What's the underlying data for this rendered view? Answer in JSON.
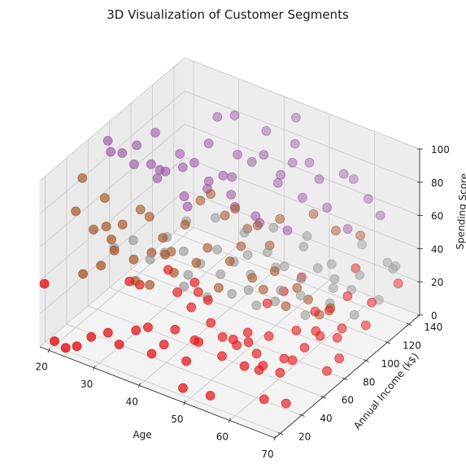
{
  "chart_data": {
    "type": "scatter",
    "projection": "3d",
    "title": "3D Visualization of Customer Segments",
    "xlabel": "Age",
    "ylabel": "Annual Income (k$)",
    "zlabel": "Spending Score",
    "xlim": [
      18,
      70
    ],
    "ylim": [
      15,
      150
    ],
    "zlim": [
      0,
      100
    ],
    "x_ticks": [
      20,
      30,
      40,
      50,
      60,
      70
    ],
    "y_ticks": [
      20,
      40,
      60,
      80,
      100,
      120,
      140
    ],
    "z_ticks": [
      0,
      20,
      40,
      60,
      80,
      100
    ],
    "grid": true,
    "legend": "none",
    "series": [
      {
        "color": "#e41a1c",
        "points": [
          [
            19,
            15,
            39
          ],
          [
            21,
            16,
            6
          ],
          [
            23,
            18,
            3
          ],
          [
            25,
            20,
            5
          ],
          [
            27,
            25,
            10
          ],
          [
            30,
            28,
            14
          ],
          [
            32,
            30,
            8
          ],
          [
            35,
            33,
            18
          ],
          [
            38,
            35,
            6
          ],
          [
            40,
            38,
            12
          ],
          [
            42,
            40,
            22
          ],
          [
            44,
            42,
            4
          ],
          [
            46,
            45,
            16
          ],
          [
            48,
            48,
            28
          ],
          [
            50,
            50,
            9
          ],
          [
            52,
            52,
            20
          ],
          [
            54,
            54,
            5
          ],
          [
            56,
            57,
            13
          ],
          [
            58,
            60,
            24
          ],
          [
            60,
            62,
            3
          ],
          [
            62,
            65,
            11
          ],
          [
            64,
            68,
            19
          ],
          [
            66,
            70,
            30
          ],
          [
            68,
            72,
            7
          ],
          [
            70,
            75,
            15
          ],
          [
            55,
            18,
            8
          ],
          [
            48,
            22,
            3
          ],
          [
            65,
            26,
            12
          ],
          [
            58,
            30,
            35
          ],
          [
            62,
            34,
            22
          ],
          [
            67,
            38,
            5
          ],
          [
            52,
            42,
            27
          ],
          [
            60,
            46,
            16
          ],
          [
            45,
            58,
            33
          ],
          [
            35,
            63,
            38
          ],
          [
            28,
            66,
            20
          ],
          [
            40,
            70,
            26
          ],
          [
            50,
            74,
            10
          ],
          [
            57,
            78,
            40
          ],
          [
            63,
            82,
            32
          ],
          [
            68,
            86,
            25
          ],
          [
            66,
            90,
            15
          ],
          [
            61,
            95,
            8
          ],
          [
            56,
            99,
            36
          ],
          [
            69,
            104,
            18
          ],
          [
            64,
            108,
            28
          ],
          [
            59,
            112,
            12
          ],
          [
            67,
            118,
            22
          ],
          [
            62,
            124,
            34
          ],
          [
            70,
            130,
            30
          ],
          [
            47,
            34,
            44
          ],
          [
            36,
            40,
            17
          ],
          [
            30,
            48,
            34
          ],
          [
            43,
            54,
            9
          ],
          [
            53,
            62,
            14
          ],
          [
            59,
            70,
            6
          ],
          [
            38,
            75,
            27
          ],
          [
            33,
            80,
            13
          ],
          [
            65,
            56,
            37
          ],
          [
            51,
            88,
            21
          ]
        ]
      },
      {
        "color": "#a65628",
        "points": [
          [
            20,
            40,
            70
          ],
          [
            21,
            42,
            90
          ],
          [
            23,
            44,
            60
          ],
          [
            25,
            46,
            80
          ],
          [
            26,
            48,
            55
          ],
          [
            28,
            50,
            65
          ],
          [
            30,
            52,
            45
          ],
          [
            31,
            54,
            75
          ],
          [
            33,
            56,
            50
          ],
          [
            35,
            58,
            60
          ],
          [
            37,
            60,
            40
          ],
          [
            39,
            62,
            70
          ],
          [
            41,
            64,
            48
          ],
          [
            43,
            66,
            58
          ],
          [
            45,
            68,
            35
          ],
          [
            47,
            70,
            52
          ],
          [
            49,
            72,
            62
          ],
          [
            51,
            74,
            44
          ],
          [
            53,
            76,
            38
          ],
          [
            55,
            78,
            50
          ],
          [
            57,
            80,
            30
          ],
          [
            59,
            82,
            42
          ],
          [
            61,
            84,
            36
          ],
          [
            63,
            86,
            28
          ],
          [
            65,
            88,
            33
          ],
          [
            22,
            60,
            52
          ],
          [
            24,
            30,
            42
          ],
          [
            27,
            34,
            48
          ],
          [
            29,
            38,
            57
          ],
          [
            32,
            45,
            38
          ],
          [
            34,
            50,
            35
          ],
          [
            36,
            56,
            52
          ],
          [
            40,
            72,
            80
          ],
          [
            44,
            78,
            72
          ],
          [
            48,
            82,
            66
          ],
          [
            52,
            86,
            58
          ],
          [
            38,
            90,
            72
          ],
          [
            42,
            96,
            64
          ],
          [
            46,
            100,
            56
          ],
          [
            50,
            104,
            62
          ],
          [
            56,
            110,
            68
          ],
          [
            60,
            114,
            60
          ],
          [
            64,
            120,
            58
          ],
          [
            34,
            70,
            44
          ],
          [
            28,
            75,
            56
          ]
        ]
      },
      {
        "color": "#984ea3",
        "points": [
          [
            20,
            70,
            96
          ],
          [
            22,
            75,
            88
          ],
          [
            24,
            80,
            92
          ],
          [
            26,
            85,
            80
          ],
          [
            28,
            90,
            75
          ],
          [
            30,
            95,
            85
          ],
          [
            32,
            100,
            79
          ],
          [
            34,
            105,
            90
          ],
          [
            36,
            110,
            70
          ],
          [
            38,
            115,
            82
          ],
          [
            40,
            120,
            77
          ],
          [
            42,
            125,
            95
          ],
          [
            44,
            130,
            68
          ],
          [
            46,
            135,
            86
          ],
          [
            48,
            140,
            74
          ],
          [
            23,
            60,
            98
          ],
          [
            27,
            65,
            92
          ],
          [
            31,
            72,
            89
          ],
          [
            35,
            78,
            74
          ],
          [
            39,
            84,
            84
          ],
          [
            43,
            88,
            78
          ],
          [
            47,
            94,
            66
          ],
          [
            51,
            98,
            88
          ],
          [
            55,
            104,
            80
          ],
          [
            59,
            110,
            75
          ],
          [
            63,
            118,
            92
          ],
          [
            67,
            126,
            70
          ],
          [
            25,
            95,
            65
          ],
          [
            29,
            102,
            72
          ],
          [
            33,
            108,
            60
          ],
          [
            37,
            114,
            68
          ],
          [
            41,
            100,
            62
          ],
          [
            45,
            110,
            92
          ],
          [
            49,
            120,
            86
          ],
          [
            53,
            128,
            76
          ],
          [
            57,
            134,
            80
          ],
          [
            61,
            140,
            66
          ],
          [
            21,
            110,
            80
          ],
          [
            50,
            85,
            70
          ],
          [
            45,
            140,
            98
          ],
          [
            35,
            125,
            97
          ],
          [
            30,
            130,
            88
          ],
          [
            60,
            125,
            55
          ],
          [
            55,
            90,
            68
          ],
          [
            40,
            60,
            83
          ]
        ]
      },
      {
        "color": "#999999",
        "points": [
          [
            25,
            55,
            45
          ],
          [
            28,
            60,
            50
          ],
          [
            31,
            63,
            40
          ],
          [
            34,
            66,
            55
          ],
          [
            37,
            69,
            48
          ],
          [
            40,
            72,
            42
          ],
          [
            43,
            75,
            52
          ],
          [
            46,
            78,
            46
          ],
          [
            49,
            81,
            40
          ],
          [
            52,
            84,
            55
          ],
          [
            55,
            87,
            48
          ],
          [
            58,
            90,
            42
          ],
          [
            61,
            93,
            50
          ],
          [
            64,
            96,
            45
          ],
          [
            67,
            99,
            40
          ],
          [
            38,
            65,
            30
          ],
          [
            42,
            70,
            25
          ],
          [
            46,
            76,
            28
          ],
          [
            50,
            82,
            22
          ],
          [
            54,
            88,
            32
          ],
          [
            58,
            94,
            18
          ],
          [
            62,
            100,
            26
          ],
          [
            66,
            106,
            20
          ],
          [
            70,
            112,
            30
          ],
          [
            45,
            95,
            40
          ],
          [
            50,
            100,
            35
          ],
          [
            55,
            105,
            50
          ],
          [
            60,
            110,
            42
          ],
          [
            65,
            115,
            38
          ],
          [
            70,
            120,
            48
          ],
          [
            35,
            80,
            58
          ],
          [
            40,
            86,
            62
          ],
          [
            45,
            92,
            55
          ],
          [
            50,
            98,
            60
          ],
          [
            56,
            104,
            58
          ],
          [
            62,
            130,
            45
          ],
          [
            68,
            136,
            35
          ],
          [
            66,
            142,
            28
          ],
          [
            58,
            120,
            20
          ],
          [
            52,
            115,
            12
          ],
          [
            48,
            108,
            8
          ],
          [
            44,
            100,
            15
          ],
          [
            39,
            95,
            22
          ],
          [
            33,
            90,
            18
          ],
          [
            29,
            85,
            30
          ]
        ]
      }
    ]
  }
}
